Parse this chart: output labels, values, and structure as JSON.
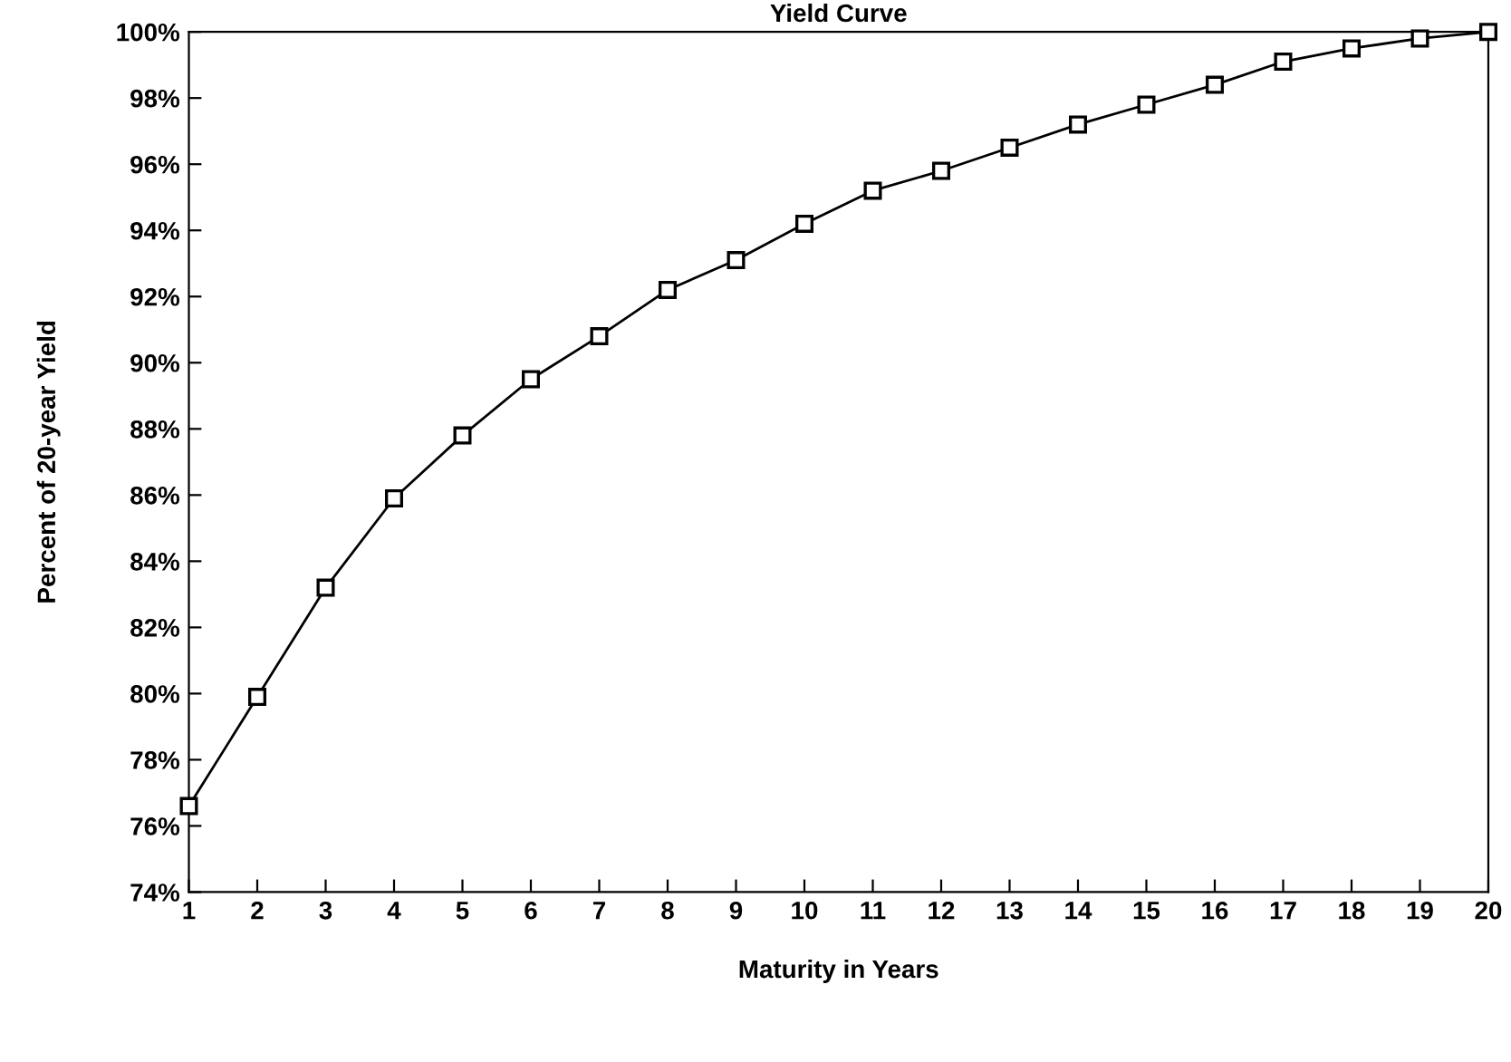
{
  "chart_data": {
    "type": "line",
    "title": "Yield Curve",
    "xlabel": "Maturity in Years",
    "ylabel": "Percent of 20-year Yield",
    "x": [
      1,
      2,
      3,
      4,
      5,
      6,
      7,
      8,
      9,
      10,
      11,
      12,
      13,
      14,
      15,
      16,
      17,
      18,
      19,
      20
    ],
    "series": [
      {
        "color": "#000000",
        "values": [
          76.6,
          79.9,
          83.2,
          85.9,
          87.8,
          89.5,
          90.8,
          92.2,
          93.1,
          94.2,
          95.2,
          95.8,
          96.5,
          97.2,
          97.8,
          98.4,
          99.1,
          99.5,
          99.8,
          100
        ]
      }
    ],
    "xlim": [
      1,
      20
    ],
    "xticks": [
      1,
      2,
      3,
      4,
      5,
      6,
      7,
      8,
      9,
      10,
      11,
      12,
      13,
      14,
      15,
      16,
      17,
      18,
      19,
      20
    ],
    "ylim": [
      74,
      100
    ],
    "yticks": [
      {
        "value": 74,
        "label": "74%"
      },
      {
        "value": 76,
        "label": "76%"
      },
      {
        "value": 78,
        "label": "78%"
      },
      {
        "value": 80,
        "label": "80%"
      },
      {
        "value": 82,
        "label": "82%"
      },
      {
        "value": 84,
        "label": "84%"
      },
      {
        "value": 86,
        "label": "86%"
      },
      {
        "value": 88,
        "label": "88%"
      },
      {
        "value": 90,
        "label": "90%"
      },
      {
        "value": 92,
        "label": "92%"
      },
      {
        "value": 94,
        "label": "94%"
      },
      {
        "value": 96,
        "label": "96%"
      },
      {
        "value": 98,
        "label": "98%"
      },
      {
        "value": 100,
        "label": "100%"
      }
    ],
    "grid": false,
    "marker": "square",
    "line_style": "solid"
  }
}
